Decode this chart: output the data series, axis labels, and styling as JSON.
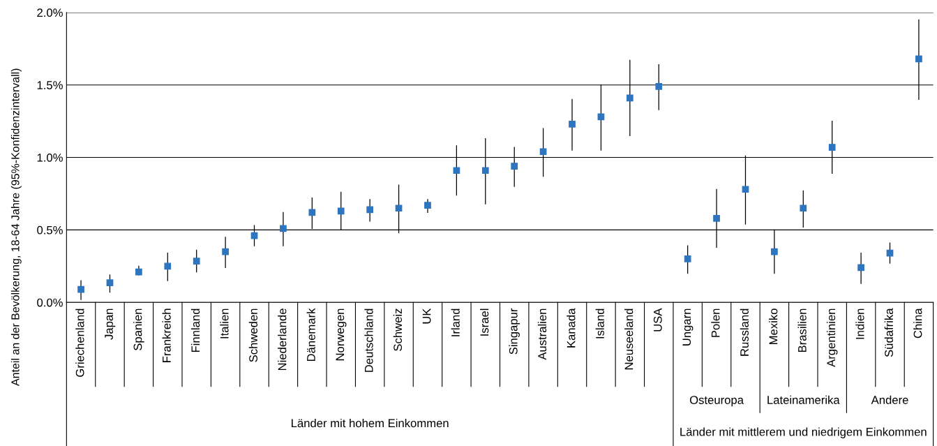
{
  "chart_data": {
    "type": "scatter",
    "ylabel": "Anteil an der Bevölkerung, 18-64 Jahre (95%-Konfidenzintervall)",
    "categories": [
      "Griechenland",
      "Japan",
      "Spanien",
      "Frankreich",
      "Finnland",
      "Italien",
      "Schweden",
      "Niederlande",
      "Dänemark",
      "Norwegen",
      "Deutschland",
      "Schweiz",
      "UK",
      "Irland",
      "Israel",
      "Singapur",
      "Australien",
      "Kanada",
      "Island",
      "Neuseeland",
      "USA",
      "Ungarn",
      "Polen",
      "Russland",
      "Mexiko",
      "Brasilien",
      "Argentinien",
      "Indien",
      "Südafrika",
      "China"
    ],
    "series": [
      {
        "color": "#2e75c0",
        "values": [
          0.09,
          0.135,
          0.21,
          0.25,
          0.285,
          0.35,
          0.46,
          0.51,
          0.62,
          0.63,
          0.64,
          0.65,
          0.67,
          0.91,
          0.91,
          0.94,
          1.04,
          1.23,
          1.28,
          1.41,
          1.49,
          0.3,
          0.58,
          0.78,
          0.35,
          0.65,
          1.07,
          0.24,
          0.34,
          1.68
        ],
        "errors": [
          [
            0.02,
            0.15
          ],
          [
            0.07,
            0.19
          ],
          [
            0.19,
            0.25
          ],
          [
            0.15,
            0.34
          ],
          [
            0.21,
            0.36
          ],
          [
            0.24,
            0.45
          ],
          [
            0.39,
            0.53
          ],
          [
            0.39,
            0.62
          ],
          [
            0.51,
            0.72
          ],
          [
            0.5,
            0.76
          ],
          [
            0.56,
            0.71
          ],
          [
            0.48,
            0.81
          ],
          [
            0.62,
            0.71
          ],
          [
            0.74,
            1.08
          ],
          [
            0.68,
            1.13
          ],
          [
            0.8,
            1.07
          ],
          [
            0.87,
            1.2
          ],
          [
            1.05,
            1.4
          ],
          [
            1.05,
            1.5
          ],
          [
            1.15,
            1.67
          ],
          [
            1.33,
            1.64
          ],
          [
            0.2,
            0.39
          ],
          [
            0.38,
            0.78
          ],
          [
            0.54,
            1.01
          ],
          [
            0.2,
            0.5
          ],
          [
            0.52,
            0.77
          ],
          [
            0.89,
            1.25
          ],
          [
            0.13,
            0.34
          ],
          [
            0.27,
            0.41
          ],
          [
            1.4,
            1.95
          ]
        ]
      }
    ],
    "ylim": [
      0,
      2.0
    ],
    "yticks": [
      {
        "value": 0,
        "label": "0.0%"
      },
      {
        "value": 0.5,
        "label": "0.5%"
      },
      {
        "value": 1.0,
        "label": "1.0%"
      },
      {
        "value": 1.5,
        "label": "1.5%"
      },
      {
        "value": 2.0,
        "label": "2.0%"
      }
    ],
    "grid": "y",
    "marker": "square",
    "legend": false,
    "annotations": [
      "Osteuropa",
      "Lateinamerika",
      "Andere",
      "Länder mit hohem Einkommen",
      "Länder mit mittlerem und niedrigem Einkommen"
    ]
  }
}
